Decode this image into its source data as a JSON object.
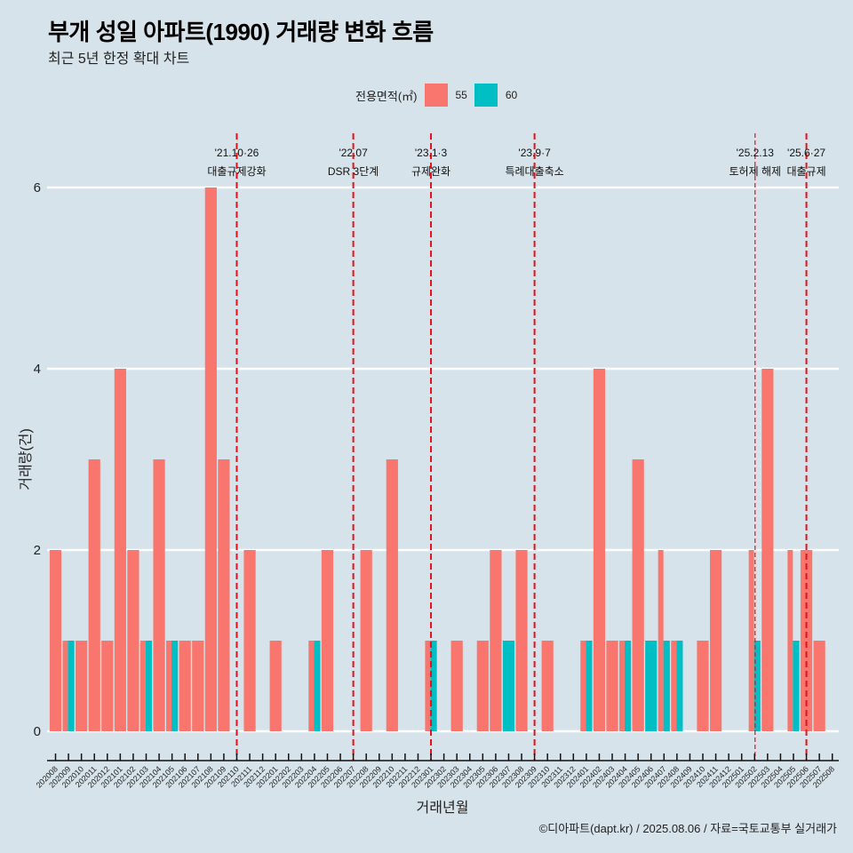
{
  "header": {
    "title": "부개 성일 아파트(1990) 거래량 변화 흐름",
    "subtitle": "최근 5년 한정 확대 차트"
  },
  "legend": {
    "title": "전용면적(㎡)",
    "items": [
      {
        "label": "55",
        "color": "#f8766d"
      },
      {
        "label": "60",
        "color": "#00bfc4"
      }
    ]
  },
  "caption": "©디아파트(dapt.kr) / 2025.08.06 / 자료=국토교통부 실거래가",
  "chart_data": {
    "type": "bar",
    "bar_mode": "dodge",
    "title": "부개 성일 아파트(1990) 거래량 변화 흐름",
    "subtitle": "최근 5년 한정 확대 차트",
    "xlabel": "거래년월",
    "ylabel": "거래량(건)",
    "ylim": [
      0,
      6.3
    ],
    "yticks": [
      0,
      2,
      4,
      6
    ],
    "grid": "horizontal",
    "legend_position": "top",
    "categories": [
      "202008",
      "202009",
      "202010",
      "202011",
      "202012",
      "202101",
      "202102",
      "202103",
      "202104",
      "202105",
      "202106",
      "202107",
      "202108",
      "202109",
      "202110",
      "202111",
      "202112",
      "202201",
      "202202",
      "202203",
      "202204",
      "202205",
      "202206",
      "202207",
      "202208",
      "202209",
      "202210",
      "202211",
      "202212",
      "202301",
      "202302",
      "202303",
      "202304",
      "202305",
      "202306",
      "202307",
      "202308",
      "202309",
      "202310",
      "202311",
      "202312",
      "202401",
      "202402",
      "202403",
      "202404",
      "202405",
      "202406",
      "202407",
      "202408",
      "202409",
      "202410",
      "202411",
      "202412",
      "202501",
      "202502",
      "202503",
      "202504",
      "202505",
      "202506",
      "202507",
      "202508"
    ],
    "series": [
      {
        "name": "55",
        "color": "#f8766d",
        "values": [
          2,
          1,
          1,
          3,
          1,
          4,
          2,
          1,
          3,
          1,
          1,
          1,
          6,
          3,
          0,
          2,
          0,
          1,
          0,
          0,
          1,
          2,
          0,
          0,
          2,
          0,
          3,
          0,
          0,
          1,
          0,
          1,
          0,
          1,
          2,
          0,
          2,
          0,
          1,
          0,
          0,
          1,
          4,
          1,
          1,
          3,
          0,
          2,
          1,
          0,
          1,
          2,
          0,
          0,
          2,
          4,
          0,
          2,
          2,
          1,
          0
        ]
      },
      {
        "name": "60",
        "color": "#00bfc4",
        "values": [
          0,
          1,
          0,
          0,
          0,
          0,
          0,
          1,
          0,
          1,
          0,
          0,
          0,
          0,
          0,
          0,
          0,
          0,
          0,
          0,
          1,
          0,
          0,
          0,
          0,
          0,
          0,
          0,
          0,
          1,
          0,
          0,
          0,
          0,
          0,
          1,
          0,
          0,
          0,
          0,
          0,
          1,
          0,
          0,
          1,
          0,
          1,
          1,
          1,
          0,
          0,
          0,
          0,
          0,
          1,
          0,
          0,
          1,
          0,
          0,
          0
        ]
      }
    ],
    "events": [
      {
        "month": "202110",
        "date": "'21.10·26",
        "label": "대출규제강화",
        "style": "dashed"
      },
      {
        "month": "202207",
        "date": "'22.07",
        "label": "DSR 3단계",
        "style": "dashed"
      },
      {
        "month": "202301",
        "date": "'23.1·3",
        "label": "규제완화",
        "style": "dashed"
      },
      {
        "month": "202309",
        "date": "'23.9·7",
        "label": "특례대출축소",
        "style": "dashed"
      },
      {
        "month": "202502",
        "date": "'25.2.13",
        "label": "토허제 해제",
        "style": "dashed-thin"
      },
      {
        "month": "202506",
        "date": "'25.6·27",
        "label": "대출규제",
        "style": "dashed"
      }
    ],
    "event_line_color": "#e8101a"
  }
}
